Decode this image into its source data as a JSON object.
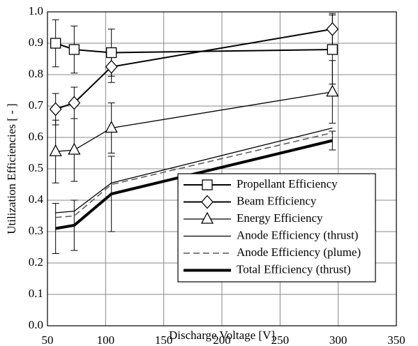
{
  "chart_data": {
    "type": "line",
    "x_label": "Discharge Voltage [V]",
    "y_label": "Utilization Efficiencies [ - ]",
    "x": [
      57,
      73,
      105,
      295
    ],
    "series": [
      {
        "name": "Propellant Efficiency",
        "color": "#000000",
        "marker": "square",
        "line_width": 2,
        "dash": false,
        "values": [
          0.9,
          0.88,
          0.87,
          0.88
        ],
        "errors": [
          0.075,
          0.075,
          0.075,
          0.11
        ]
      },
      {
        "name": "Beam Efficiency",
        "color": "#000000",
        "marker": "diamond",
        "line_width": 2,
        "dash": false,
        "values": [
          0.69,
          0.71,
          0.825,
          0.945
        ],
        "errors": [
          0.05,
          0.05,
          0.05,
          0.05
        ]
      },
      {
        "name": "Energy Efficiency",
        "color": "#000000",
        "marker": "triangle",
        "line_width": 1.3,
        "dash": false,
        "values": [
          0.555,
          0.56,
          0.63,
          0.745
        ],
        "errors": [
          0.1,
          0.1,
          0.08,
          0.1
        ]
      },
      {
        "name": "Anode Efficiency (thrust)",
        "color": "#000000",
        "marker": "none",
        "line_width": 1.3,
        "dash": false,
        "values": [
          0.36,
          0.365,
          0.455,
          0.63
        ]
      },
      {
        "name": "Anode Efficiency (plume)",
        "color": "#555555",
        "marker": "none",
        "line_width": 1.5,
        "dash": true,
        "values": [
          0.345,
          0.35,
          0.45,
          0.615
        ]
      },
      {
        "name": "Total Efficiency (thrust)",
        "color": "#000000",
        "marker": "none",
        "line_width": 4,
        "dash": false,
        "values": [
          0.31,
          0.32,
          0.42,
          0.59
        ],
        "errors": [
          0.08,
          0.08,
          0.12,
          0.03
        ]
      }
    ],
    "xlim": [
      50,
      350
    ],
    "xticks": [
      50,
      100,
      150,
      200,
      250,
      300,
      350
    ],
    "ylim": [
      0,
      1
    ],
    "yticks": [
      {
        "value": 0,
        "label": "0.0"
      },
      0.1,
      0.2,
      0.3,
      0.4,
      0.5,
      0.6,
      0.7,
      0.8,
      0.9,
      {
        "value": 1,
        "label": "1.0"
      }
    ],
    "grid": true,
    "legend": "lower right"
  }
}
